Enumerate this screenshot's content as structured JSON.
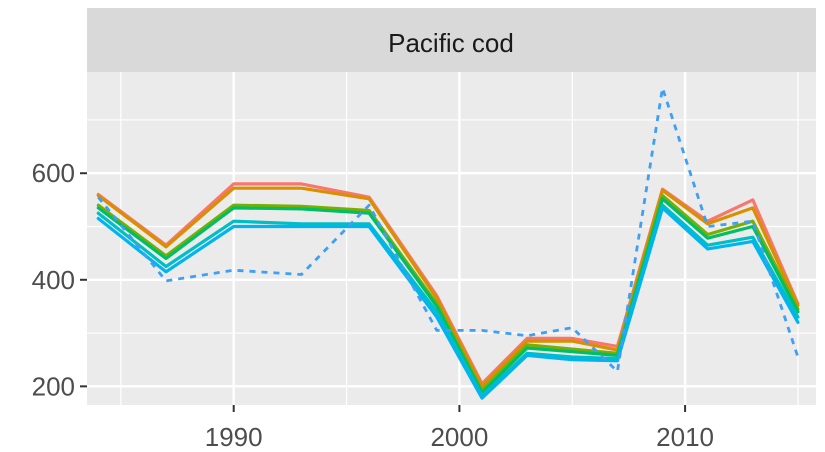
{
  "chart_data": {
    "type": "line",
    "title": "Pacific cod",
    "xlabel": "",
    "ylabel": "",
    "xlim": [
      1983.5,
      2015.8
    ],
    "ylim": [
      165,
      790
    ],
    "x_ticks": [
      1990,
      2000,
      2010
    ],
    "y_ticks": [
      200,
      400,
      600
    ],
    "grid": true,
    "panel_color": "#ebebeb",
    "strip_color": "#d9d9d9",
    "x": [
      1984,
      1987,
      1990,
      1993,
      1996,
      1999,
      2001,
      2003,
      2005,
      2007,
      2009,
      2011,
      2013,
      2015
    ],
    "series": [
      {
        "color": "#f8766d",
        "style": "solid",
        "values": [
          560,
          465,
          580,
          580,
          555,
          370,
          205,
          290,
          290,
          275,
          570,
          510,
          550,
          355
        ]
      },
      {
        "color": "#d89000",
        "style": "solid",
        "values": [
          558,
          462,
          572,
          572,
          552,
          365,
          200,
          285,
          285,
          268,
          568,
          505,
          535,
          352
        ]
      },
      {
        "color": "#7cae00",
        "style": "solid",
        "values": [
          540,
          445,
          540,
          538,
          530,
          355,
          192,
          278,
          270,
          262,
          558,
          485,
          510,
          345
        ]
      },
      {
        "color": "#00be67",
        "style": "solid",
        "values": [
          535,
          440,
          535,
          533,
          525,
          350,
          188,
          272,
          265,
          258,
          552,
          478,
          500,
          340
        ]
      },
      {
        "color": "#00bfc4",
        "style": "solid",
        "values": [
          525,
          425,
          510,
          505,
          505,
          340,
          182,
          262,
          255,
          252,
          540,
          465,
          480,
          330
        ]
      },
      {
        "color": "#00b4ef",
        "style": "solid",
        "values": [
          515,
          415,
          500,
          500,
          500,
          330,
          178,
          258,
          250,
          248,
          535,
          458,
          472,
          320
        ]
      },
      {
        "color": "#3d9ff5",
        "style": "dashed",
        "values": [
          555,
          398,
          418,
          410,
          540,
          305,
          305,
          295,
          310,
          228,
          760,
          500,
          510,
          255
        ]
      }
    ]
  }
}
